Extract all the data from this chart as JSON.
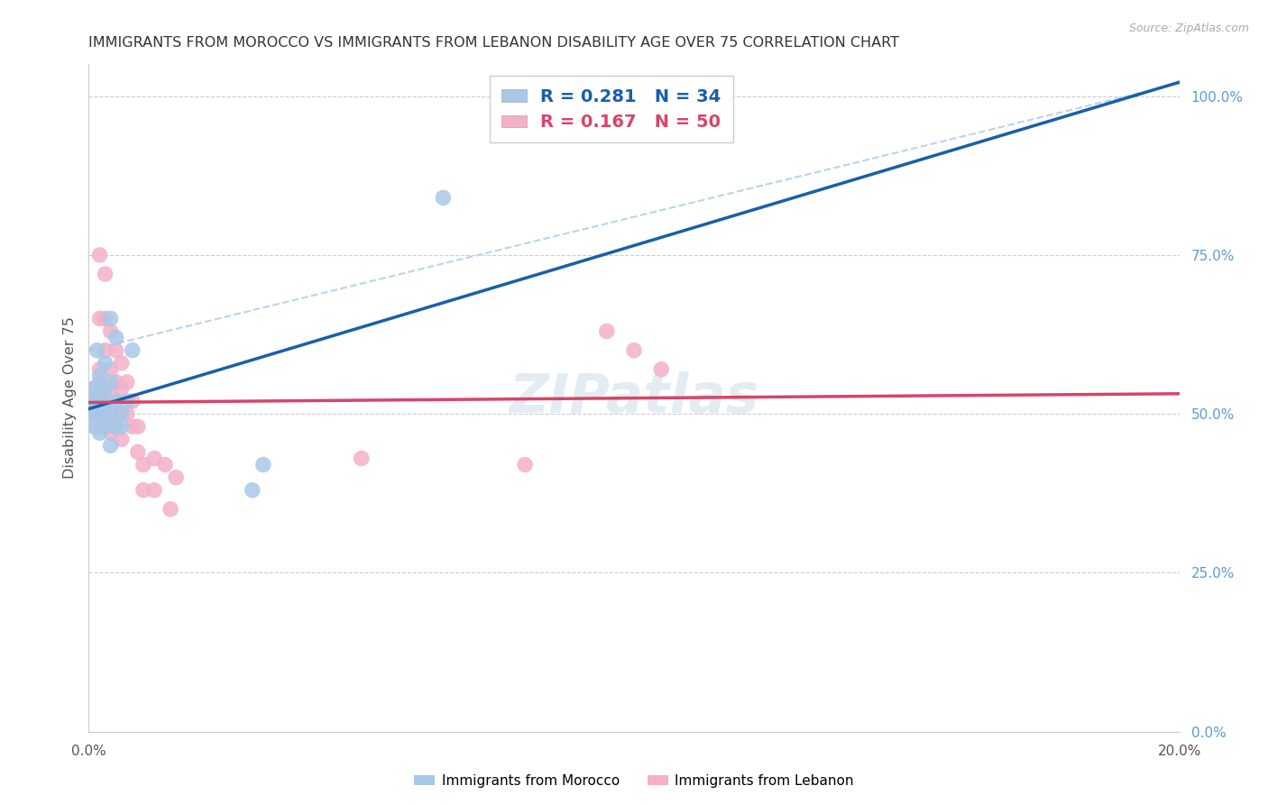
{
  "title": "IMMIGRANTS FROM MOROCCO VS IMMIGRANTS FROM LEBANON DISABILITY AGE OVER 75 CORRELATION CHART",
  "source": "Source: ZipAtlas.com",
  "ylabel": "Disability Age Over 75",
  "ylabel_right_ticks": [
    "0.0%",
    "25.0%",
    "50.0%",
    "75.0%",
    "100.0%"
  ],
  "ylabel_right_vals": [
    0.0,
    0.25,
    0.5,
    0.75,
    1.0
  ],
  "xmin": 0.0,
  "xmax": 0.2,
  "ymin": 0.0,
  "ymax": 1.05,
  "legend_blue_r": "0.281",
  "legend_blue_n": "34",
  "legend_pink_r": "0.167",
  "legend_pink_n": "50",
  "legend_label_blue": "Immigrants from Morocco",
  "legend_label_pink": "Immigrants from Lebanon",
  "blue_color": "#a8c8e8",
  "pink_color": "#f4b0c8",
  "line_blue_color": "#1a5fa8",
  "line_pink_color": "#d94468",
  "dashed_line_color": "#b8d4ec",
  "watermark_color": "#ccdde8",
  "watermark": "ZIPatlas",
  "morocco_x": [
    0.0005,
    0.001,
    0.001,
    0.001,
    0.001,
    0.0015,
    0.0015,
    0.002,
    0.002,
    0.002,
    0.002,
    0.002,
    0.0025,
    0.0025,
    0.003,
    0.003,
    0.003,
    0.003,
    0.003,
    0.003,
    0.004,
    0.004,
    0.004,
    0.004,
    0.005,
    0.005,
    0.005,
    0.006,
    0.006,
    0.007,
    0.008,
    0.03,
    0.032,
    0.065
  ],
  "morocco_y": [
    0.505,
    0.52,
    0.54,
    0.48,
    0.5,
    0.6,
    0.5,
    0.52,
    0.56,
    0.47,
    0.5,
    0.54,
    0.48,
    0.5,
    0.5,
    0.54,
    0.58,
    0.48,
    0.5,
    0.52,
    0.45,
    0.5,
    0.55,
    0.65,
    0.48,
    0.52,
    0.62,
    0.48,
    0.5,
    0.52,
    0.6,
    0.38,
    0.42,
    0.84
  ],
  "lebanon_x": [
    0.0005,
    0.001,
    0.001,
    0.001,
    0.0015,
    0.0015,
    0.002,
    0.002,
    0.002,
    0.002,
    0.002,
    0.0025,
    0.003,
    0.003,
    0.003,
    0.003,
    0.003,
    0.003,
    0.003,
    0.004,
    0.004,
    0.004,
    0.004,
    0.004,
    0.005,
    0.005,
    0.005,
    0.005,
    0.006,
    0.006,
    0.006,
    0.006,
    0.007,
    0.007,
    0.008,
    0.008,
    0.009,
    0.009,
    0.01,
    0.01,
    0.012,
    0.012,
    0.014,
    0.015,
    0.016,
    0.05,
    0.08,
    0.095,
    0.1,
    0.105
  ],
  "lebanon_y": [
    0.505,
    0.52,
    0.54,
    0.5,
    0.48,
    0.53,
    0.51,
    0.55,
    0.57,
    0.65,
    0.75,
    0.5,
    0.5,
    0.54,
    0.6,
    0.65,
    0.72,
    0.48,
    0.52,
    0.47,
    0.5,
    0.53,
    0.57,
    0.63,
    0.48,
    0.52,
    0.55,
    0.6,
    0.5,
    0.54,
    0.58,
    0.46,
    0.5,
    0.55,
    0.48,
    0.52,
    0.44,
    0.48,
    0.38,
    0.42,
    0.38,
    0.43,
    0.42,
    0.35,
    0.4,
    0.43,
    0.42,
    0.63,
    0.6,
    0.57
  ]
}
